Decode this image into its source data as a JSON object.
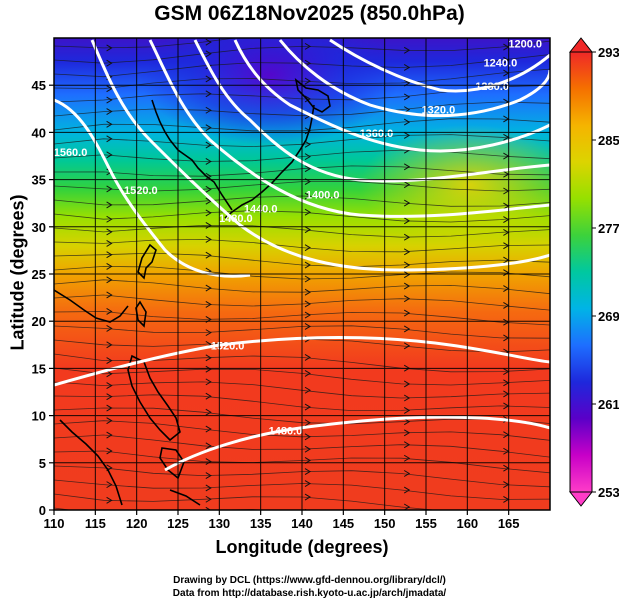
{
  "title": "GSM 06Z18Nov2025 (850.0hPa)",
  "axes": {
    "xlabel": "Longitude (degrees)",
    "ylabel": "Latitude  (degrees)",
    "x_ticks": [
      "110",
      "115",
      "120",
      "125",
      "130",
      "135",
      "140",
      "145",
      "150",
      "155",
      "160",
      "165"
    ],
    "y_ticks": [
      "0",
      "5",
      "10",
      "15",
      "20",
      "25",
      "30",
      "35",
      "40",
      "45"
    ],
    "xlim": [
      110,
      170
    ],
    "ylim": [
      0,
      50
    ]
  },
  "colorbar": {
    "labels": [
      "293",
      "285",
      "277",
      "269",
      "261",
      "253"
    ],
    "values": [
      293,
      285,
      277,
      269,
      261,
      253
    ],
    "stops": [
      "#f02828",
      "#f57000",
      "#f5b400",
      "#dcd400",
      "#96e000",
      "#3cd23c",
      "#00c8a0",
      "#00b4e6",
      "#1e6eff",
      "#1e28dc",
      "#5a00c8",
      "#c800c8",
      "#ff3cc8"
    ]
  },
  "contour_labels": [
    {
      "text": "1560.0",
      "lon": 112,
      "lat": 37.5
    },
    {
      "text": "1520.0",
      "lon": 120.5,
      "lat": 33.5
    },
    {
      "text": "1480.0",
      "lon": 132,
      "lat": 30.5
    },
    {
      "text": "1440.0",
      "lon": 135,
      "lat": 31.5
    },
    {
      "text": "1400.0",
      "lon": 142.5,
      "lat": 33
    },
    {
      "text": "1360.0",
      "lon": 149,
      "lat": 39.5
    },
    {
      "text": "1320.0",
      "lon": 156.5,
      "lat": 42
    },
    {
      "text": "1280.0",
      "lon": 163,
      "lat": 44.5
    },
    {
      "text": "1240.0",
      "lon": 164,
      "lat": 47
    },
    {
      "text": "1200.0",
      "lon": 167,
      "lat": 49
    },
    {
      "text": "1520.0",
      "lon": 131,
      "lat": 17
    },
    {
      "text": "1480.0",
      "lon": 138,
      "lat": 8
    }
  ],
  "credits": {
    "line1": "Drawing by DCL (https://www.gfd-dennou.org/library/dcl/)",
    "line2": "Data from http://database.rish.kyoto-u.ac.jp/arch/jmadata/"
  }
}
